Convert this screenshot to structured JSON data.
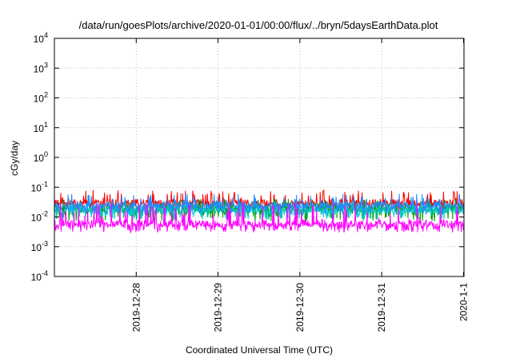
{
  "chart_data": {
    "type": "line",
    "title": "/data/run/goesPlots/archive/2020-01-01/00:00/flux/../bryn/5daysEarthData.plot",
    "xlabel": "Coordinated Universal Time (UTC)",
    "ylabel": "cGy/day",
    "yscale": "log",
    "ylim": [
      0.0001,
      10000
    ],
    "xlim": [
      "2019-12-27 00:00",
      "2020-01-01 00:08"
    ],
    "grid": true,
    "x_ticks": [
      "2019-12-28",
      "2019-12-29",
      "2019-12-30",
      "2019-12-31",
      "2020-1-1"
    ],
    "y_ticks": [
      {
        "base": "10",
        "exp": "-4"
      },
      {
        "base": "10",
        "exp": "-3"
      },
      {
        "base": "10",
        "exp": "-2"
      },
      {
        "base": "10",
        "exp": "-1"
      },
      {
        "base": "10",
        "exp": "0"
      },
      {
        "base": "10",
        "exp": "1"
      },
      {
        "base": "10",
        "exp": "2"
      },
      {
        "base": "10",
        "exp": "3"
      },
      {
        "base": "10",
        "exp": "4"
      }
    ],
    "series": [
      {
        "color": "#ff0000",
        "typical": 0.03,
        "spike_max": 0.08,
        "floor": 0.018
      },
      {
        "color": "#00a000",
        "typical": 0.02,
        "spike_max": 0.04,
        "floor": 0.007
      },
      {
        "color": "#00c8c8",
        "typical": 0.018,
        "spike_max": 0.035,
        "floor": 0.008
      },
      {
        "color": "#1e8cff",
        "typical": 0.025,
        "spike_max": 0.06,
        "floor": 0.012
      },
      {
        "color": "#ff00ff",
        "typical": 0.006,
        "spike_max": 0.03,
        "floor": 0.003
      }
    ]
  }
}
